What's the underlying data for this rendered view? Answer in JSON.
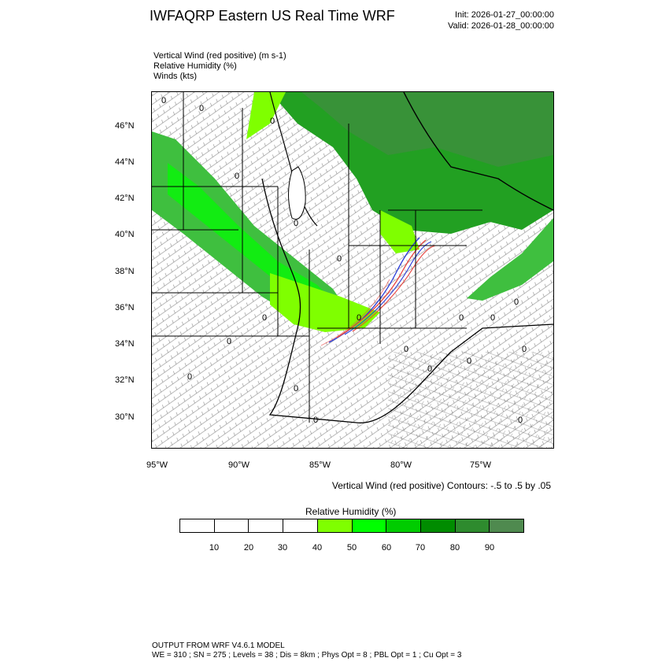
{
  "header": {
    "title": "IWFAQRP Eastern US Real Time WRF",
    "init": "Init: 2026-01-27_00:00:00",
    "valid": "Valid: 2026-01-28_00:00:00"
  },
  "fields": [
    "Vertical Wind (red positive)   (m s-1)",
    "Relative Humidity   (%)",
    "Winds   (kts)"
  ],
  "map": {
    "lat_labels": [
      "46°N",
      "44°N",
      "42°N",
      "40°N",
      "38°N",
      "36°N",
      "34°N",
      "32°N",
      "30°N"
    ],
    "lon_labels": [
      "95°W",
      "90°W",
      "85°W",
      "80°W",
      "75°W"
    ],
    "contour_zero_label": "0",
    "colors": {
      "positive": "#e8423c",
      "negative": "#2a3cd8",
      "humid_low": "#7fff00",
      "humid_high": "#2c8f2c"
    }
  },
  "contour_note": "Vertical Wind (red positive) Contours: -.5 to .5 by .05",
  "colorbar": {
    "title": "Relative Humidity   (%)",
    "labels": [
      "10",
      "20",
      "30",
      "40",
      "50",
      "60",
      "70",
      "80",
      "90"
    ],
    "colors": [
      "#ffffff",
      "#ffffff",
      "#ffffff",
      "#ffffff",
      "#7fff00",
      "#00ff00",
      "#00cc00",
      "#008c00",
      "#2e8b2e",
      "#4f8a4f"
    ]
  },
  "footer": {
    "line1": "OUTPUT FROM WRF V4.6.1 MODEL",
    "line2": "WE = 310 ; SN = 275 ; Levels = 38 ; Dis = 8km ; Phys Opt = 8 ; PBL Opt = 1 ; Cu Opt = 3"
  }
}
